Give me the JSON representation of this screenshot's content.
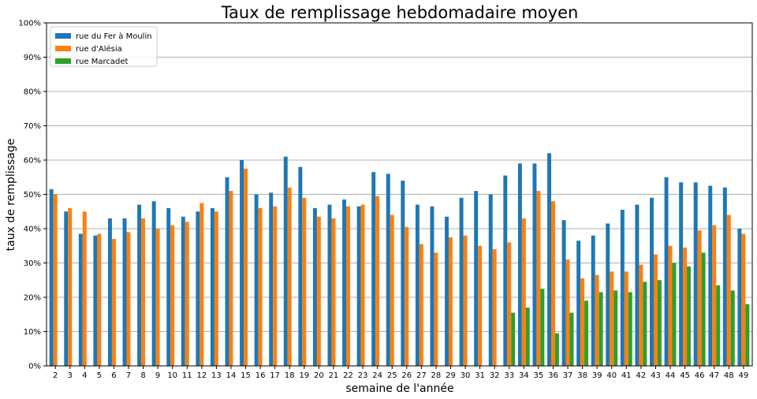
{
  "chart_data": {
    "type": "bar",
    "title": "Taux de remplissage hebdomadaire moyen",
    "xlabel": "semaine de l'année",
    "ylabel": "taux de remplissage",
    "ylim": [
      0,
      100
    ],
    "yticks": [
      "0%",
      "10%",
      "20%",
      "30%",
      "40%",
      "50%",
      "60%",
      "70%",
      "80%",
      "90%",
      "100%"
    ],
    "grid": "horizontal",
    "legend_position": "top-left",
    "categories": [
      "2",
      "3",
      "4",
      "5",
      "6",
      "7",
      "8",
      "9",
      "10",
      "11",
      "12",
      "13",
      "14",
      "15",
      "16",
      "17",
      "18",
      "19",
      "20",
      "21",
      "22",
      "23",
      "24",
      "25",
      "26",
      "27",
      "28",
      "29",
      "30",
      "31",
      "32",
      "33",
      "34",
      "35",
      "36",
      "37",
      "38",
      "39",
      "40",
      "41",
      "42",
      "43",
      "44",
      "45",
      "46",
      "47",
      "48",
      "49"
    ],
    "series": [
      {
        "name": "rue du Fer à Moulin",
        "color": "#1f77b4",
        "values": [
          51.5,
          45,
          38.5,
          38,
          43,
          43,
          47,
          48,
          46,
          43.5,
          45,
          46,
          55,
          60,
          50,
          50.5,
          61,
          58,
          46,
          47,
          48.5,
          46.5,
          56.5,
          56,
          54,
          47,
          46.5,
          43.5,
          49,
          51,
          50,
          55.5,
          59,
          59,
          62,
          42.5,
          36.5,
          38,
          41.5,
          45.5,
          47,
          49,
          55,
          53.5,
          53.5,
          52.5,
          52,
          40
        ]
      },
      {
        "name": "rue d'Alésia",
        "color": "#ff7f0e",
        "values": [
          50,
          46,
          45,
          38.5,
          37,
          39,
          43,
          40,
          41,
          42,
          47.5,
          45,
          51,
          57.5,
          46,
          46.5,
          52,
          49,
          43.5,
          43,
          46.5,
          47,
          49.5,
          44,
          40.5,
          35.5,
          33,
          37.5,
          38,
          35,
          34,
          36,
          43,
          51,
          48,
          31,
          25.5,
          26.5,
          27.5,
          27.5,
          29.5,
          32.5,
          35,
          34.5,
          39.5,
          41,
          44,
          38.5
        ]
      },
      {
        "name": "rue Marcadet",
        "color": "#2ca02c",
        "values": [
          null,
          null,
          null,
          null,
          null,
          null,
          null,
          null,
          null,
          null,
          null,
          null,
          null,
          null,
          null,
          null,
          null,
          null,
          null,
          null,
          null,
          null,
          null,
          null,
          null,
          null,
          null,
          null,
          null,
          null,
          null,
          15.5,
          17,
          22.5,
          9.5,
          15.5,
          19,
          21.5,
          22,
          21.5,
          24.5,
          25,
          30,
          29,
          33,
          23.5,
          22,
          18
        ]
      }
    ]
  }
}
